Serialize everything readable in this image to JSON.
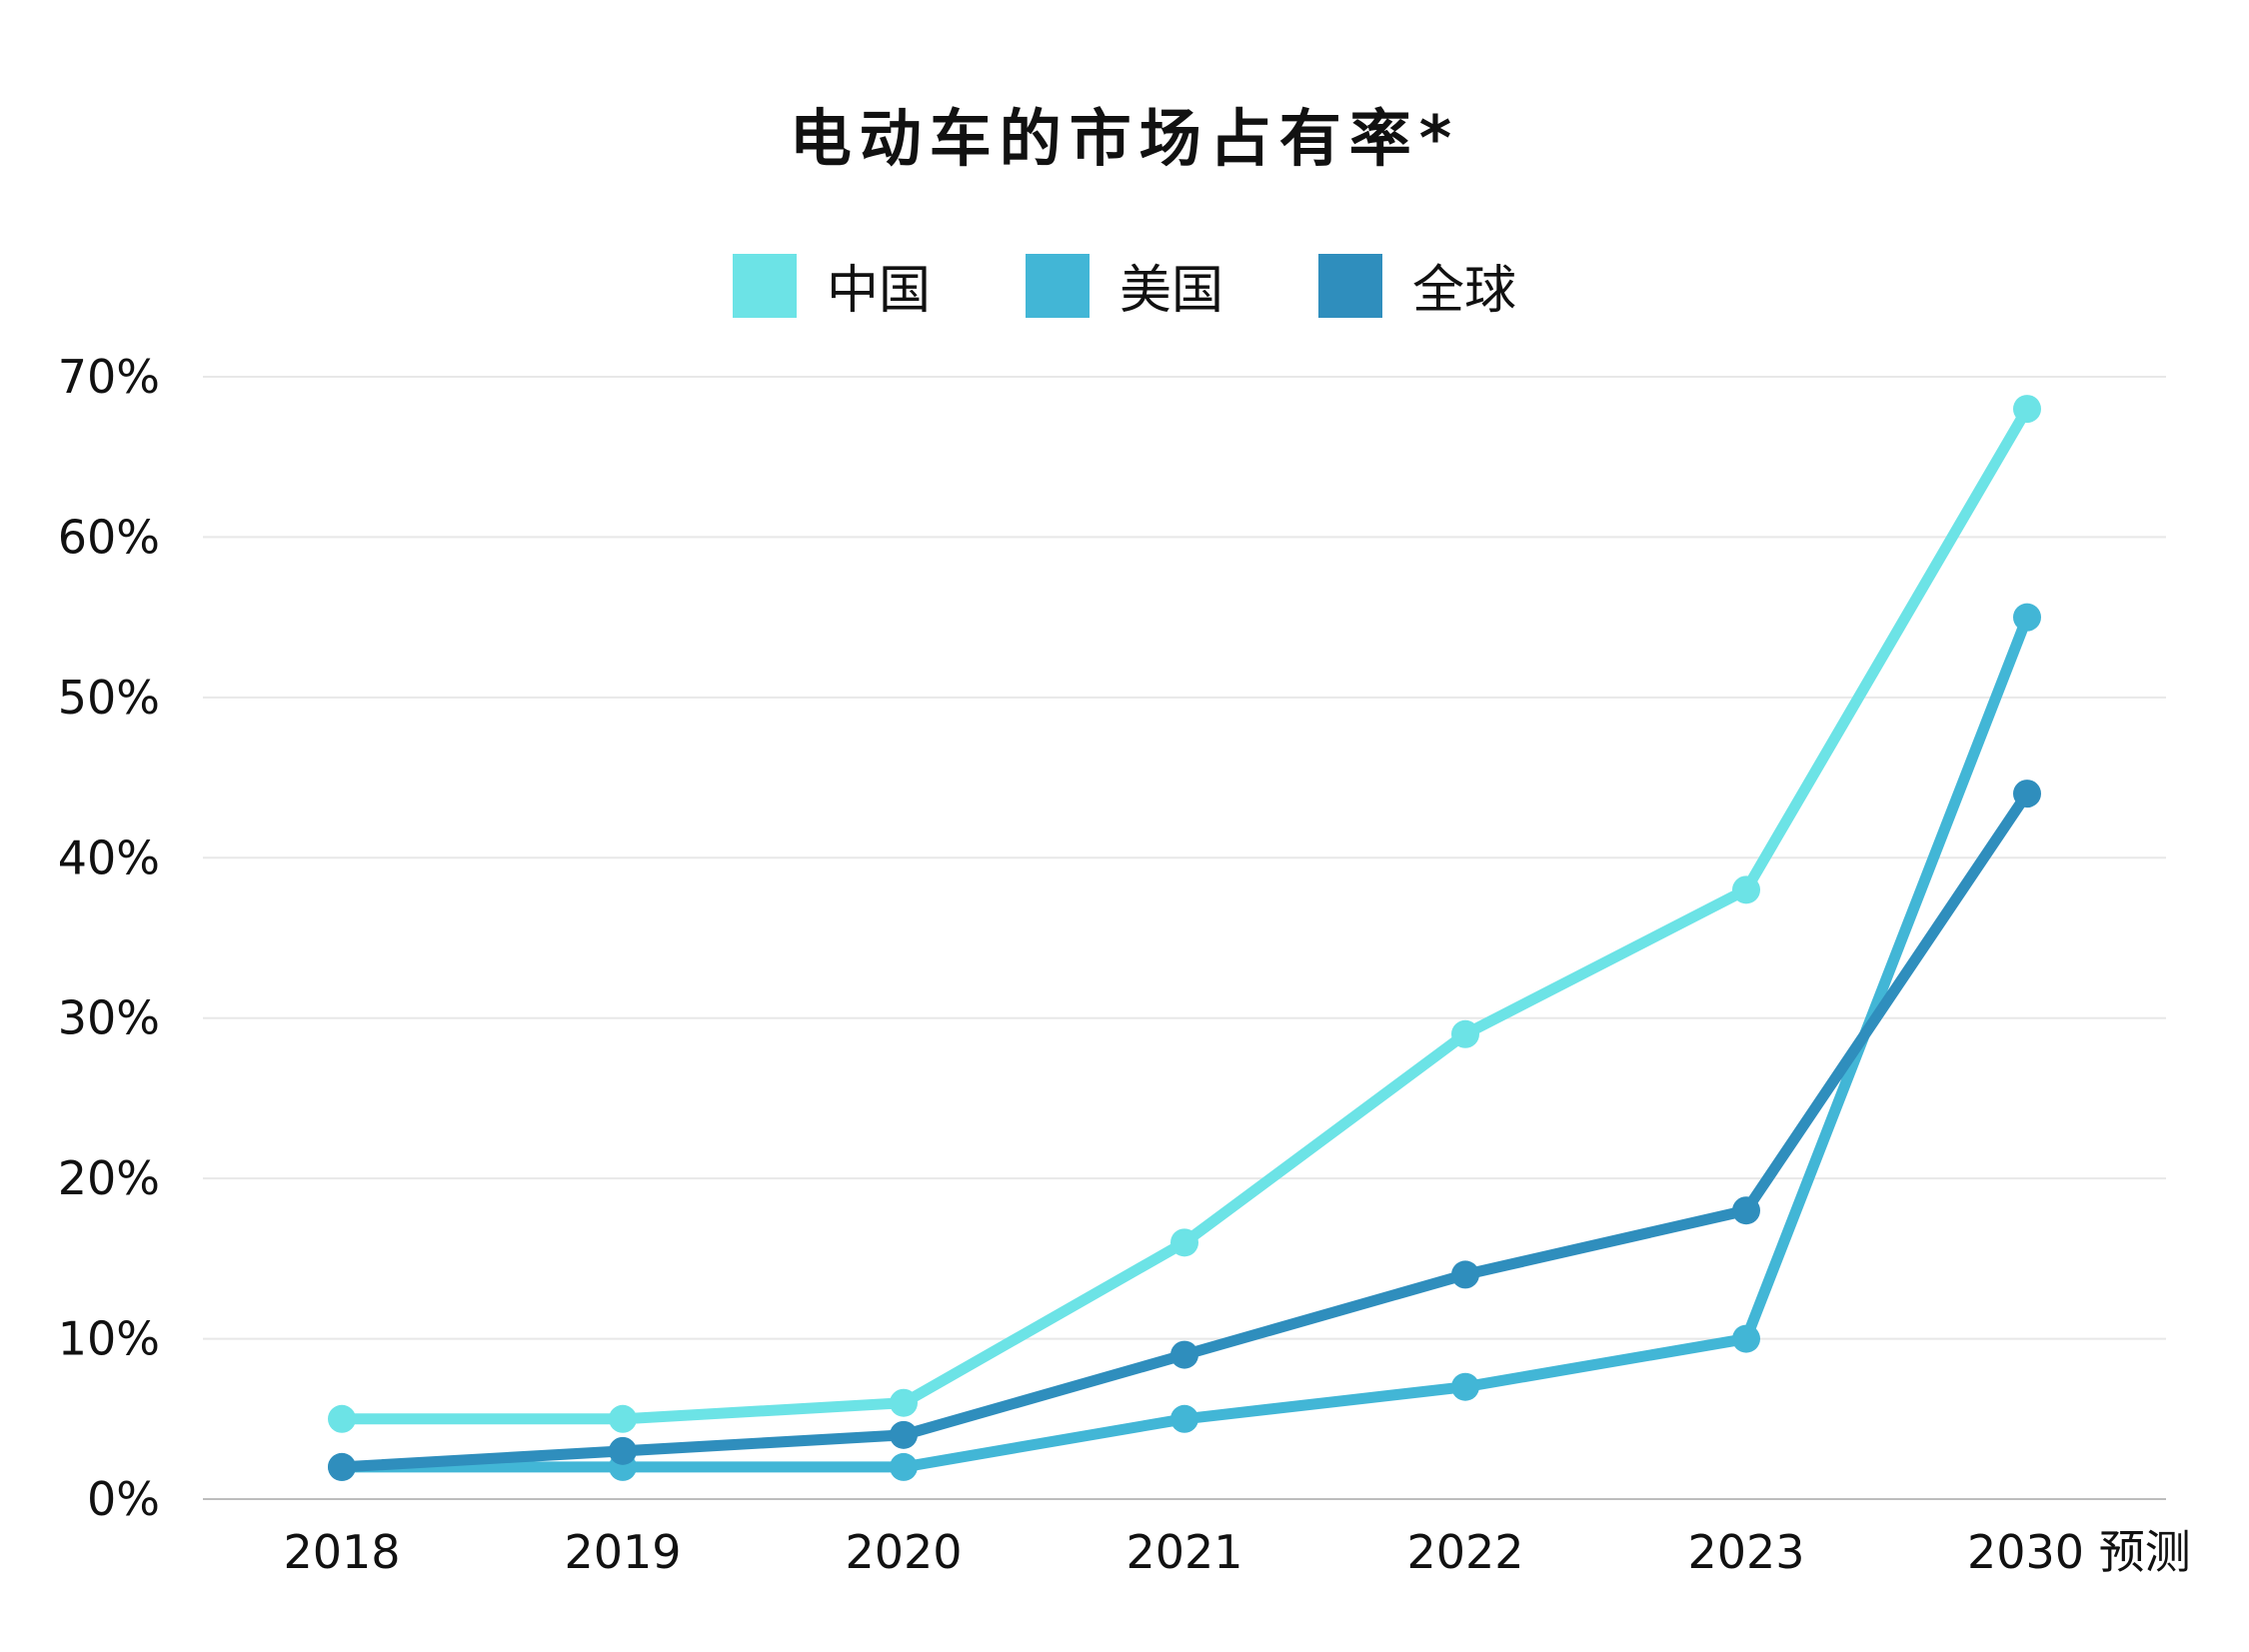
{
  "chart_data": {
    "type": "line",
    "title": "电动车的市场占有率*",
    "categories": [
      "2018",
      "2019",
      "2020",
      "2021",
      "2022",
      "2023",
      "2030 预测"
    ],
    "y_ticks": [
      "0%",
      "10%",
      "20%",
      "30%",
      "40%",
      "50%",
      "60%",
      "70%"
    ],
    "ylim": [
      0,
      70
    ],
    "y_unit": "%",
    "grid": true,
    "legend_position": "top",
    "series": [
      {
        "name": "中国",
        "color": "#6ce3e6",
        "values": [
          5,
          5,
          6,
          16,
          29,
          38,
          68
        ]
      },
      {
        "name": "美国",
        "color": "#42b6d6",
        "values": [
          2,
          2,
          2,
          5,
          7,
          10,
          55
        ]
      },
      {
        "name": "全球",
        "color": "#2f8ebd",
        "values": [
          2,
          3,
          4,
          9,
          14,
          18,
          44
        ]
      }
    ]
  }
}
